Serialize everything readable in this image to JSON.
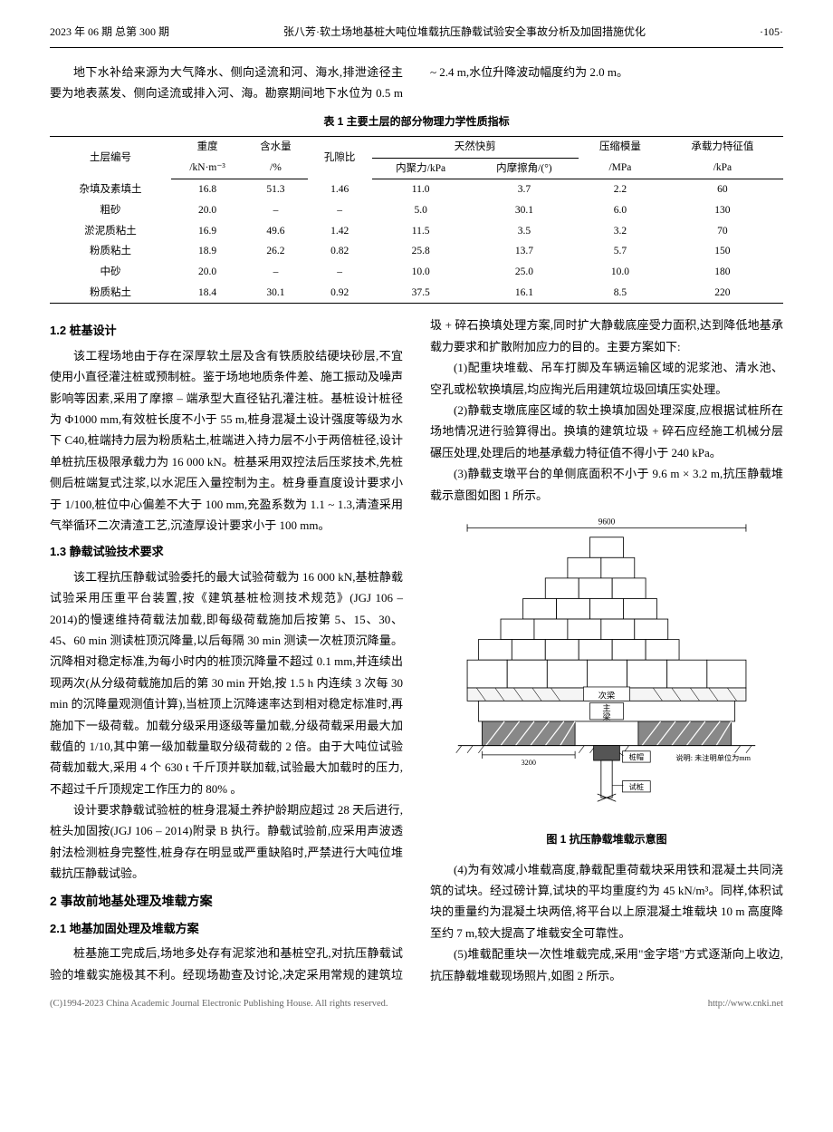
{
  "header": {
    "left": "2023 年 06 期 总第 300 期",
    "center": "张八芳·软土场地基桩大吨位堆载抗压静载试验安全事故分析及加固措施优化",
    "right": "·105·"
  },
  "intro": {
    "p1": "地下水补给来源为大气降水、侧向迳流和河、海水,排泄途径主要为地表蒸发、侧向迳流或排入河、",
    "p2": "海。勘察期间地下水位为 0.5 m ~ 2.4 m,水位升降波动幅度约为 2.0 m。"
  },
  "table1": {
    "caption": "表 1  主要土层的部分物理力学性质指标",
    "head": {
      "c1": "土层编号",
      "c2a": "重度",
      "c2b": "/kN·m⁻³",
      "c3a": "含水量",
      "c3b": "/%",
      "c4": "孔隙比",
      "c5": "天然快剪",
      "c5a": "内聚力/kPa",
      "c5b": "内摩擦角/(°)",
      "c6a": "压缩模量",
      "c6b": "/MPa",
      "c7a": "承载力特征值",
      "c7b": "/kPa"
    },
    "rows": [
      [
        "杂填及素填土",
        "16.8",
        "51.3",
        "1.46",
        "11.0",
        "3.7",
        "2.2",
        "60"
      ],
      [
        "粗砂",
        "20.0",
        "–",
        "–",
        "5.0",
        "30.1",
        "6.0",
        "130"
      ],
      [
        "淤泥质粘土",
        "16.9",
        "49.6",
        "1.42",
        "11.5",
        "3.5",
        "3.2",
        "70"
      ],
      [
        "粉质粘土",
        "18.9",
        "26.2",
        "0.82",
        "25.8",
        "13.7",
        "5.7",
        "150"
      ],
      [
        "中砂",
        "20.0",
        "–",
        "–",
        "10.0",
        "25.0",
        "10.0",
        "180"
      ],
      [
        "粉质粘土",
        "18.4",
        "30.1",
        "0.92",
        "37.5",
        "16.1",
        "8.5",
        "220"
      ]
    ]
  },
  "sec12": {
    "title": "1.2  桩基设计",
    "p1": "该工程场地由于存在深厚软土层及含有铁质胶结硬块砂层,不宜使用小直径灌注桩或预制桩。鉴于场地地质条件差、施工振动及噪声影响等因素,采用了摩擦 – 端承型大直径钻孔灌注桩。基桩设计桩径为 Φ1000 mm,有效桩长度不小于 55 m,桩身混凝土设计强度等级为水下 C40,桩端持力层为粉质粘土,桩端进入持力层不小于两倍桩径,设计单桩抗压极限承载力为 16 000 kN。桩基采用双控法后压浆技术,先桩侧后桩端复式注浆,以水泥压入量控制为主。桩身垂直度设计要求小于 1/100,桩位中心偏差不大于 100 mm,充盈系数为 1.1 ~ 1.3,清渣采用气举循环二次清渣工艺,沉渣厚设计要求小于 100 mm。"
  },
  "sec13": {
    "title": "1.3  静载试验技术要求",
    "p1": "该工程抗压静载试验委托的最大试验荷载为 16 000 kN,基桩静载试验采用压重平台装置,按《建筑基桩检测技术规范》(JGJ 106 – 2014)的慢速维持荷载法加载,即每级荷载施加后按第 5、15、30、45、60 min 测读桩顶沉降量,以后每隔 30 min 测读一次桩顶沉降量。沉降相对稳定标准,为每小时内的桩顶沉降量不超过 0.1 mm,并连续出现两次(从分级荷载施加后的第 30 min 开始,按 1.5 h 内连续 3 次每 30 min 的沉降量观测值计算),当桩顶上沉降速率达到相对稳定标准时,再施加下一级荷载。加载分级采用逐级等量加载,分级荷载采用最大加载值的 1/10,其中第一级加载量取分级荷载的 2 倍。由于大吨位试验荷载加载大,采用 4 个 630 t 千斤顶并联加载,试验最大加载时的压力,不超过千斤顶规定工作压力的 80% 。",
    "p2": "设计要求静载试验桩的桩身混凝土养护龄期应超过 28 天后进行,桩头加固按(JGJ 106 – 2014)附录 B 执行。静载试验前,应采用声波透射法检测桩身完整性,桩身存在明显或严重缺陷时,严禁进行大吨位堆载抗压静载试验。"
  },
  "sec2": {
    "title": "2  事故前地基处理及堆载方案"
  },
  "sec21": {
    "title": "2.1  地基加固处理及堆载方案",
    "p1": "桩基施工完成后,场地多处存有泥浆池和基桩空孔,对抗压静载试验的堆载实施极其不利。经现场勘查及讨论,决定采用常规的建筑垃圾 + 碎石换填处理方案,同时扩大静载底座受力面积,达到降低地基承载力要求和扩散附加应力的目的。主要方案如下:",
    "p2": "(1)配重块堆载、吊车打脚及车辆运输区域的泥浆池、清水池、空孔或松软换填层,均应掏光后用建筑垃圾回填压实处理。",
    "p3": "(2)静载支墩底座区域的软土换填加固处理深度,应根据试桩所在场地情况进行验算得出。换填的建筑垃圾 + 碎石应经施工机械分层碾压处理,处理后的地基承载力特征值不得小于 240 kPa。",
    "p4": "(3)静载支墩平台的单侧底面积不小于 9.6 m × 3.2 m,抗压静载堆载示意图如图 1 所示。",
    "p5": "(4)为有效减小堆载高度,静载配重荷载块采用铁和混凝土共同浇筑的试块。经过磅计算,试块的平均重度约为 45 kN/m³。同样,体积试块的重量约为混凝土块两倍,将平台以上原混凝土堆载块 10 m 高度降至约 7 m,较大提高了堆载安全可靠性。",
    "p6": "(5)堆载配重块一次性堆载完成,采用\"金字塔\"方式逐渐向上收边,抗压静载堆载现场照片,如图 2 所示。"
  },
  "fig1": {
    "caption": "图 1  抗压静载堆载示意图",
    "width_label": "9600",
    "base_dim": "3200",
    "labels": {
      "ciliang": "次梁",
      "zhuliang": "主梁",
      "zhuangmao": "桩帽",
      "shizhuang": "试桩",
      "note": "说明: 未注明单位为mm"
    },
    "colors": {
      "bg": "#ffffff",
      "line": "#000000",
      "hatch": "#000000"
    }
  },
  "footer": {
    "left": "(C)1994-2023 China Academic Journal Electronic Publishing House. All rights reserved.",
    "right": "http://www.cnki.net"
  }
}
